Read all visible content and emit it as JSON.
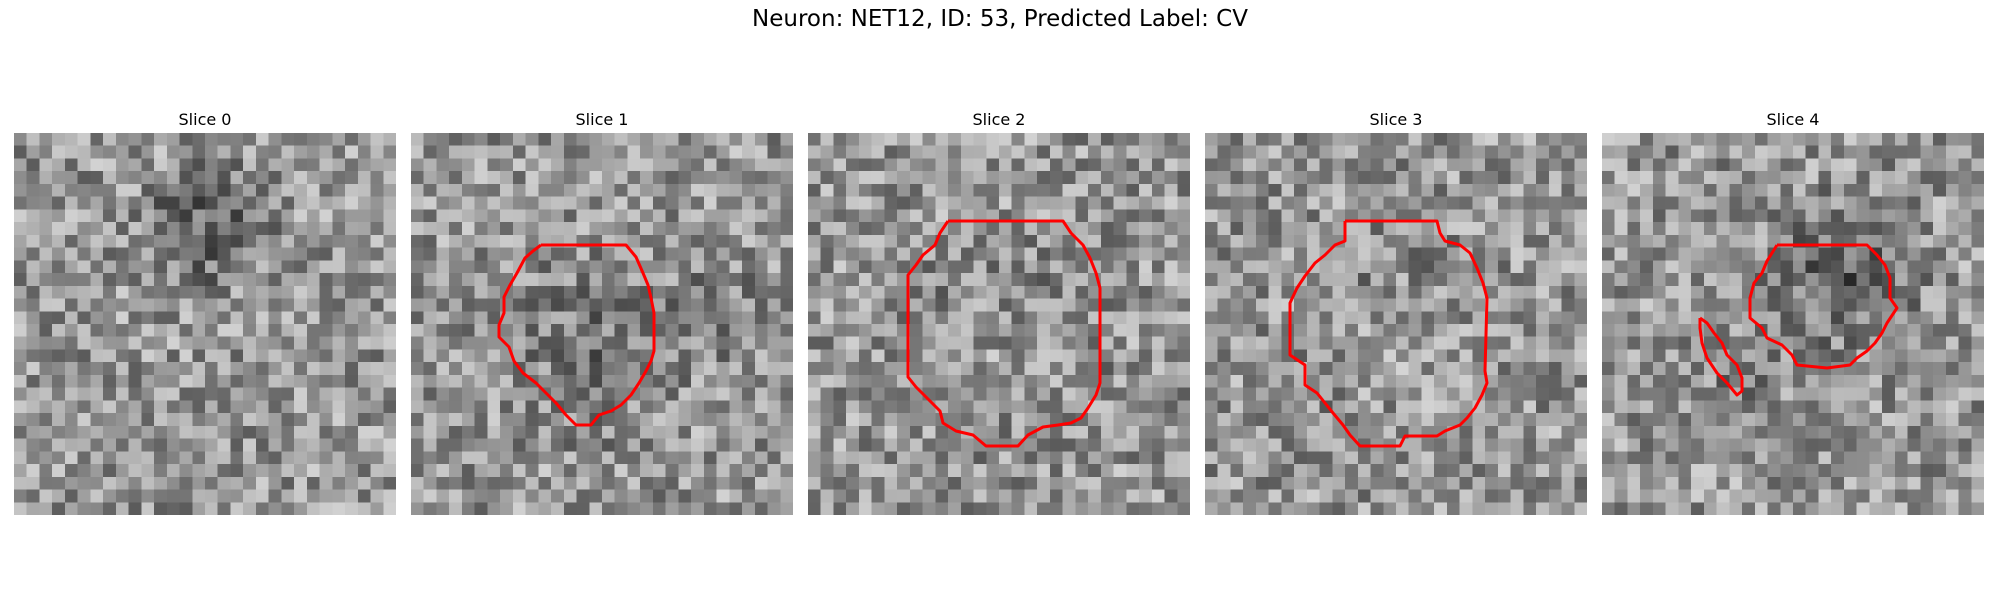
{
  "figure": {
    "title": "Neuron: NET12, ID: 53, Predicted Label: CV",
    "contour_color": "#ff0000"
  },
  "slices": [
    {
      "label": "Slice 0"
    },
    {
      "label": "Slice 1"
    },
    {
      "label": "Slice 2"
    },
    {
      "label": "Slice 3"
    },
    {
      "label": "Slice 4"
    }
  ]
}
